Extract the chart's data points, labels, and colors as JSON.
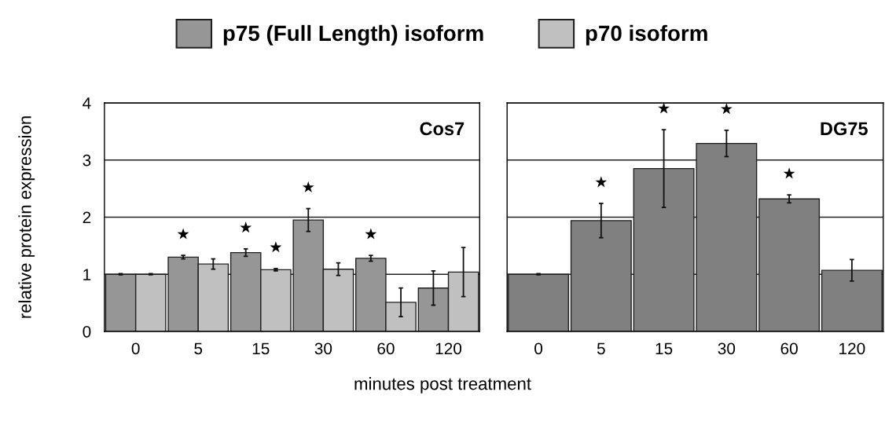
{
  "chart_data": [
    {
      "type": "bar",
      "ylabel": "relative protein expression",
      "xlabel": "minutes post treatment",
      "categories": [
        "0",
        "5",
        "15",
        "30",
        "60",
        "120"
      ],
      "ylim": [
        0,
        4
      ],
      "yticks": [
        0,
        1,
        2,
        3,
        4
      ],
      "grid": "y",
      "legend": "top",
      "series": [
        {
          "name": "p75 (Full Length) isoform",
          "color": "#969696",
          "values": [
            1.0,
            1.3,
            1.38,
            1.95,
            1.28,
            0.76
          ],
          "errors": [
            0.01,
            0.03,
            0.065,
            0.2,
            0.05,
            0.3
          ]
        },
        {
          "name": "p70 isoform",
          "color": "#c0c0c0",
          "values": [
            1.0,
            1.18,
            1.08,
            1.09,
            0.51,
            1.04
          ],
          "errors": [
            0.01,
            0.09,
            0.02,
            0.11,
            0.25,
            0.43
          ]
        }
      ],
      "annotations": [
        "Cos7",
        {
          "text": "★",
          "x": "5",
          "y": 1.3
        },
        {
          "text": "★",
          "x": "15",
          "y": 1.38
        },
        {
          "text": "★",
          "x": "15",
          "y": 1.08
        },
        {
          "text": "★",
          "x": "30",
          "y": 1.95
        },
        {
          "text": "★",
          "x": "60",
          "y": 1.28
        }
      ]
    },
    {
      "type": "bar",
      "categories": [
        "0",
        "5",
        "15",
        "30",
        "60",
        "120"
      ],
      "ylim": [
        0,
        4
      ],
      "yticks": [
        0,
        1,
        2,
        3,
        4
      ],
      "grid": "y",
      "tick_labels": "x",
      "series": [
        {
          "color": "#808080",
          "values": [
            1.0,
            1.94,
            2.85,
            3.29,
            2.32,
            1.07
          ],
          "errors": [
            0.01,
            0.3,
            0.68,
            0.23,
            0.07,
            0.19
          ]
        }
      ],
      "annotations": [
        "DG75",
        {
          "text": "★",
          "x": "5",
          "y": 1.94
        },
        {
          "text": "★",
          "x": "15",
          "y": 3.53
        },
        {
          "text": "★",
          "x": "30",
          "y": 3.29
        },
        {
          "text": "★",
          "x": "60",
          "y": 2.32
        }
      ]
    }
  ]
}
